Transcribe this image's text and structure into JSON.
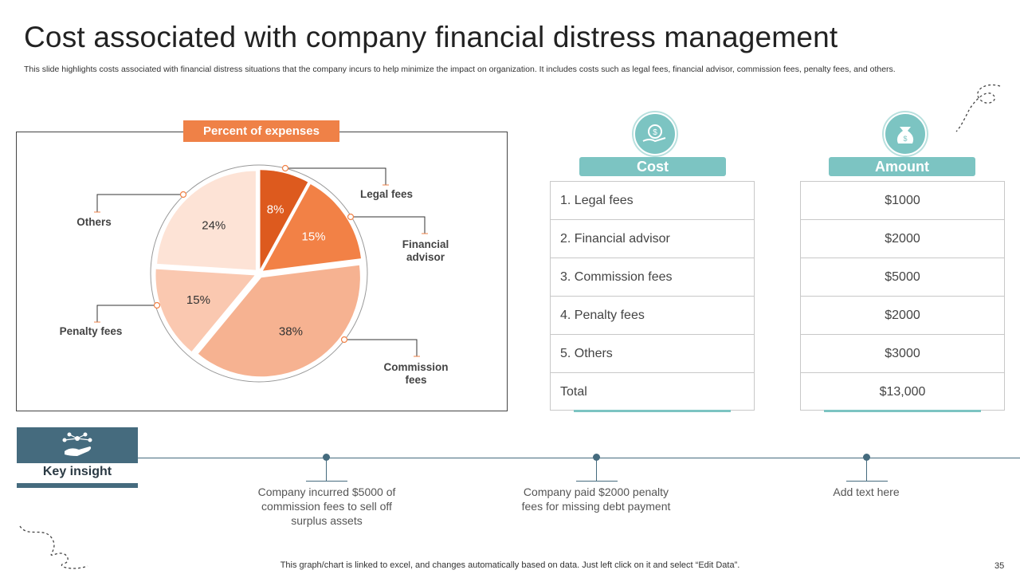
{
  "title": "Cost associated with company financial distress management",
  "subtitle": "This slide highlights costs associated with financial distress situations that the company incurs to help minimize the impact on organization. It includes costs such as legal fees, financial advisor, commission fees, penalty fees, and others.",
  "chart_data": {
    "type": "pie",
    "title": "Percent of expenses",
    "slices": [
      {
        "label": "Legal fees",
        "value": 8,
        "display": "8%",
        "color": "#dd5a1e",
        "text_color": "#ffffff",
        "callout": [
          "Legal fees"
        ]
      },
      {
        "label": "Financial advisor",
        "value": 15,
        "display": "15%",
        "color": "#f28146",
        "text_color": "#ffffff",
        "callout": [
          "Financial",
          "advisor"
        ]
      },
      {
        "label": "Commission fees",
        "value": 38,
        "display": "38%",
        "color": "#f6b291",
        "text_color": "#333333",
        "callout": [
          "Commission",
          "fees"
        ]
      },
      {
        "label": "Penalty fees",
        "value": 15,
        "display": "15%",
        "color": "#fac8b0",
        "text_color": "#333333",
        "callout": [
          "Penalty fees"
        ]
      },
      {
        "label": "Others",
        "value": 24,
        "display": "24%",
        "color": "#fde3d6",
        "text_color": "#333333",
        "callout": [
          "Others"
        ]
      }
    ]
  },
  "table": {
    "cost_header": "Cost",
    "amount_header": "Amount",
    "rows": [
      {
        "cost": "1. Legal fees",
        "amount": "$1000"
      },
      {
        "cost": "2. Financial advisor",
        "amount": "$2000"
      },
      {
        "cost": "3. Commission fees",
        "amount": "$5000"
      },
      {
        "cost": "4. Penalty fees",
        "amount": "$2000"
      },
      {
        "cost": "5. Others",
        "amount": "$3000"
      },
      {
        "cost": "Total",
        "amount": "$13,000"
      }
    ]
  },
  "insight": {
    "label": "Key insight",
    "items": [
      {
        "text": "Company incurred $5000 of commission fees to sell off surplus assets"
      },
      {
        "text": "Company paid $2000 penalty fees for missing debt payment"
      },
      {
        "text": "Add text here"
      }
    ]
  },
  "footer_note": "This graph/chart is linked to excel,  and changes automatically based on data. Just left click on it and select “Edit Data”.",
  "page_number": "35",
  "colors": {
    "accent_orange": "#ef8147",
    "teal": "#7cc4c2",
    "slate": "#456b7e"
  }
}
